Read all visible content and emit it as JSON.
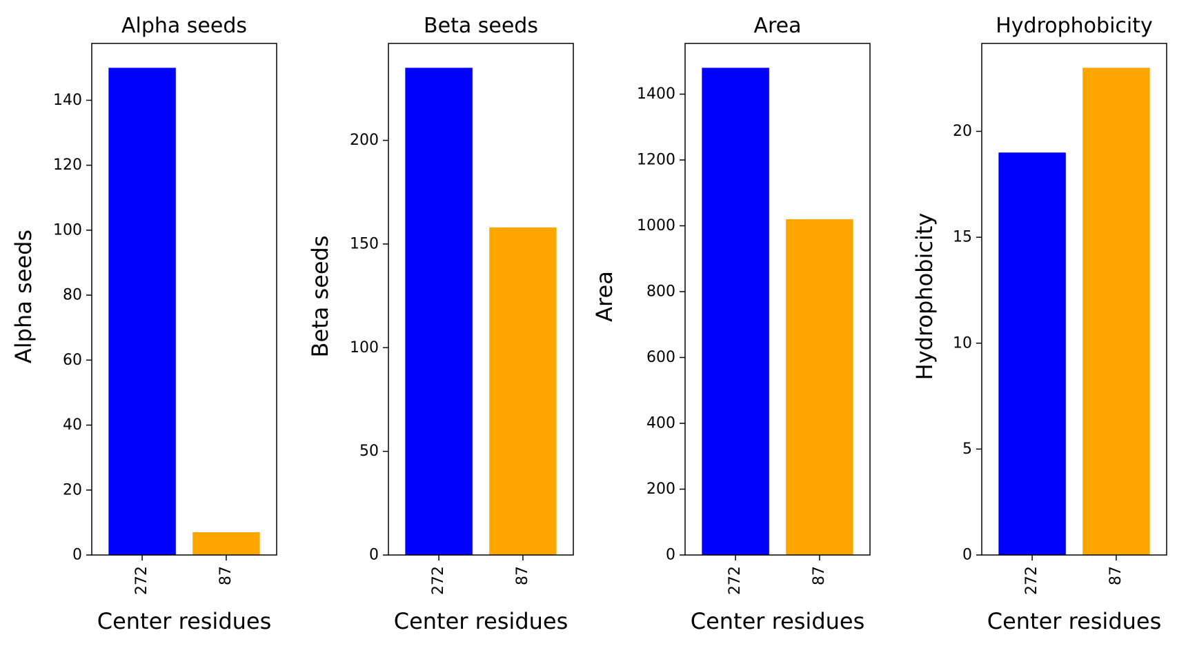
{
  "chart_data": [
    {
      "type": "bar",
      "title": "Alpha seeds",
      "xlabel": "Center residues",
      "ylabel": "Alpha seeds",
      "categories": [
        "272",
        "87"
      ],
      "values": [
        150,
        7
      ],
      "bar_colors": [
        "#0000ff",
        "#ffa500"
      ],
      "ylim": [
        0,
        157.5
      ],
      "yticks": [
        0,
        20,
        40,
        60,
        80,
        100,
        120,
        140
      ],
      "grid": false
    },
    {
      "type": "bar",
      "title": "Beta seeds",
      "xlabel": "Center residues",
      "ylabel": "Beta seeds",
      "categories": [
        "272",
        "87"
      ],
      "values": [
        235,
        158
      ],
      "bar_colors": [
        "#0000ff",
        "#ffa500"
      ],
      "ylim": [
        0,
        246.75
      ],
      "yticks": [
        0,
        50,
        100,
        150,
        200
      ],
      "grid": false
    },
    {
      "type": "bar",
      "title": "Area",
      "xlabel": "Center residues",
      "ylabel": "Area",
      "categories": [
        "272",
        "87"
      ],
      "values": [
        1480,
        1020
      ],
      "bar_colors": [
        "#0000ff",
        "#ffa500"
      ],
      "ylim": [
        0,
        1554
      ],
      "yticks": [
        0,
        200,
        400,
        600,
        800,
        1000,
        1200,
        1400
      ],
      "grid": false
    },
    {
      "type": "bar",
      "title": "Hydrophobicity",
      "xlabel": "Center residues",
      "ylabel": "Hydrophobicity",
      "categories": [
        "272",
        "87"
      ],
      "values": [
        19,
        23
      ],
      "bar_colors": [
        "#0000ff",
        "#ffa500"
      ],
      "ylim": [
        0,
        24.15
      ],
      "yticks": [
        0,
        5,
        10,
        15,
        20
      ],
      "grid": false
    }
  ]
}
